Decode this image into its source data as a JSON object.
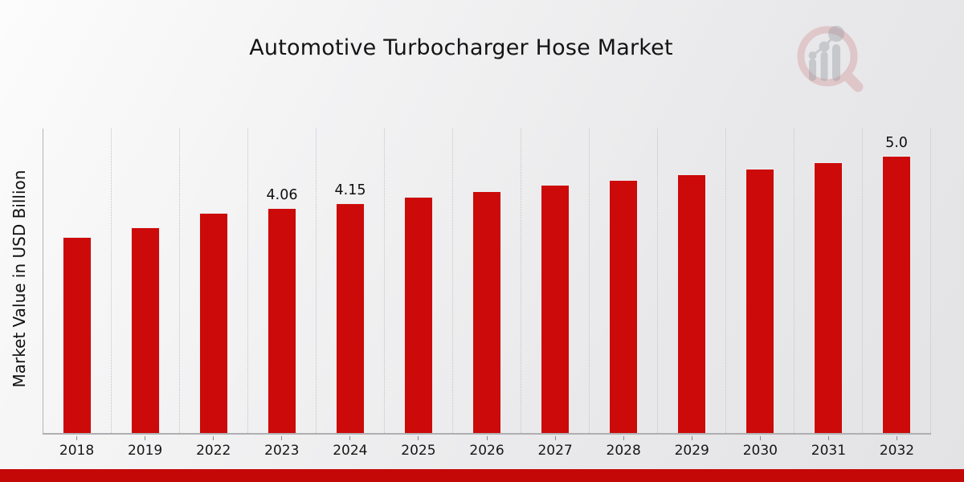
{
  "header": {
    "title": "Automotive Turbocharger Hose Market"
  },
  "chart_data": {
    "type": "bar",
    "title": "Automotive Turbocharger Hose Market",
    "ylabel": "Market Value in USD Billion",
    "xlabel": "",
    "categories": [
      "2018",
      "2019",
      "2022",
      "2023",
      "2024",
      "2025",
      "2026",
      "2027",
      "2028",
      "2029",
      "2030",
      "2031",
      "2032"
    ],
    "values": [
      3.54,
      3.71,
      3.97,
      4.06,
      4.15,
      4.27,
      4.37,
      4.48,
      4.57,
      4.67,
      4.78,
      4.89,
      5.0
    ],
    "bar_labels": [
      "",
      "",
      "",
      "4.06",
      "4.15",
      "",
      "",
      "",
      "",
      "",
      "",
      "",
      "5.0"
    ],
    "ylim": [
      0,
      5.5
    ],
    "grid": "vertical-dotted",
    "legend": "none",
    "bar_color": "#cc0a0a",
    "gridline_color": "#c4c4c8",
    "axis_color": "#afafb2"
  },
  "branding": {
    "watermark": "market-research-future-logo",
    "accent_bar_color": "#c40808"
  }
}
